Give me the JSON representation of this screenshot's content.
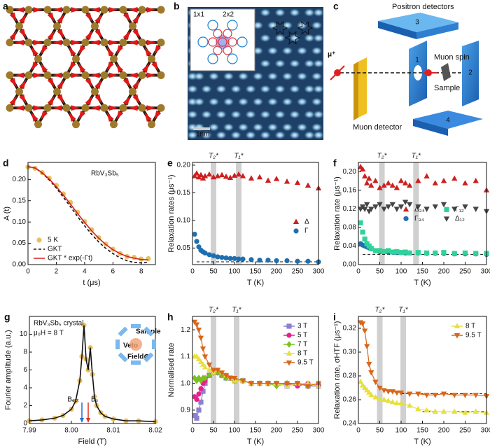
{
  "diagrams": {
    "a": {
      "label": "a"
    },
    "b": {
      "label": "b",
      "inset": [
        "1x1",
        "2x2"
      ],
      "scale": "1nm"
    },
    "c": {
      "label": "c",
      "positron": "Positron detectors",
      "muon": "μ⁺",
      "spin": "Muon spin",
      "sample": "Sample",
      "detector": "Muon detector",
      "numbers": [
        "1",
        "2",
        "3",
        "4"
      ]
    }
  },
  "chart_data": [
    {
      "type": "line",
      "label": "d",
      "xlabel": "t (μs)",
      "ylabel": "A (t)",
      "annotations": [
        "RbV₃Sb₅"
      ],
      "xlim": [
        0,
        9
      ],
      "xticks": [
        0,
        2,
        4,
        6,
        8
      ],
      "ylim": [
        0,
        0.24
      ],
      "yticks": [
        {
          "value": 0,
          "label": "0.00"
        },
        0.05,
        {
          "value": 0.1,
          "label": "0.10"
        },
        0.15,
        {
          "value": 0.2,
          "label": "0.20"
        }
      ],
      "legend": "lower left",
      "x": [
        0,
        0.5,
        1,
        1.5,
        2,
        2.5,
        3,
        3.5,
        4,
        4.5,
        5,
        5.5,
        6,
        6.5,
        7,
        7.5,
        8,
        8.5
      ],
      "series": [
        {
          "name": "5 K",
          "color": "#e8c060",
          "style": "markers",
          "marker": "circle",
          "values": [
            0.229,
            0.226,
            0.216,
            0.203,
            0.186,
            0.166,
            0.146,
            0.123,
            0.101,
            0.082,
            0.063,
            0.048,
            0.036,
            0.026,
            0.019,
            0.017,
            0.013,
            0.014
          ]
        },
        {
          "name": "GKT",
          "color": "#111111",
          "style": "dashed",
          "values": [
            0.23,
            0.227,
            0.215,
            0.199,
            0.18,
            0.158,
            0.136,
            0.113,
            0.091,
            0.071,
            0.053,
            0.038,
            0.026,
            0.016,
            0.009,
            0.005,
            0.004,
            0.005
          ]
        },
        {
          "name": "GKT * exp(-Γt)",
          "color": "#d42020",
          "style": "line",
          "values": [
            0.23,
            0.227,
            0.216,
            0.201,
            0.183,
            0.163,
            0.142,
            0.12,
            0.099,
            0.079,
            0.062,
            0.047,
            0.035,
            0.026,
            0.019,
            0.015,
            0.012,
            0.011
          ]
        }
      ]
    },
    {
      "type": "scatter",
      "label": "e",
      "xlabel": "T (K)",
      "ylabel": "Relaxation rates (μs⁻¹)",
      "annotations": [],
      "xlim": [
        0,
        300
      ],
      "xticks": [
        0,
        50,
        100,
        150,
        200,
        250,
        300
      ],
      "ylim": [
        0.02,
        0.205
      ],
      "yticks": [
        0.05,
        {
          "value": 0.1,
          "label": "0.10"
        },
        0.15,
        {
          "value": 0.2,
          "label": "0.20"
        }
      ],
      "legend": "center right",
      "bands": [
        {
          "x": 50,
          "label": "T₂*"
        },
        {
          "x": 110,
          "label": "T₁*"
        }
      ],
      "hlines": [
        {
          "y": 0.025,
          "from": 10,
          "to": 300
        }
      ],
      "x": [
        5,
        10,
        15,
        20,
        25,
        30,
        40,
        50,
        60,
        70,
        80,
        90,
        100,
        110,
        120,
        140,
        160,
        180,
        200,
        225,
        250,
        275,
        300
      ],
      "series": [
        {
          "name": "Δ",
          "color": "#cc1f1f",
          "style": "markers",
          "marker": "triangle",
          "values": [
            0.18,
            0.185,
            0.178,
            0.182,
            0.176,
            0.18,
            0.183,
            0.178,
            0.18,
            0.182,
            0.179,
            0.177,
            0.181,
            0.183,
            0.18,
            0.176,
            0.178,
            0.172,
            0.175,
            0.17,
            0.168,
            0.163,
            0.158
          ]
        },
        {
          "name": "Γ",
          "color": "#1f6fb0",
          "style": "markers",
          "marker": "circle",
          "values": [
            0.075,
            0.062,
            0.052,
            0.046,
            0.043,
            0.041,
            0.038,
            0.036,
            0.034,
            0.033,
            0.032,
            0.031,
            0.031,
            0.03,
            0.03,
            0.029,
            0.028,
            0.028,
            0.027,
            0.027,
            0.026,
            0.026,
            0.025
          ]
        }
      ]
    },
    {
      "type": "scatter",
      "label": "f",
      "xlabel": "T (K)",
      "ylabel": "Relaxation rate (μs⁻¹)",
      "annotations": [],
      "xlim": [
        0,
        300
      ],
      "xticks": [
        0,
        50,
        100,
        150,
        200,
        250,
        300
      ],
      "ylim": [
        0,
        0.22
      ],
      "yticks": [
        {
          "value": 0,
          "label": "0.00"
        },
        0.04,
        0.08,
        0.12,
        0.16,
        {
          "value": 0.2,
          "label": "0.20"
        }
      ],
      "legend": "center",
      "legend_columns": 2,
      "bands": [
        {
          "x": 55,
          "label": "T₂*"
        },
        {
          "x": 135,
          "label": "T₁*"
        }
      ],
      "hlines": [
        {
          "y": 0.022,
          "from": 10,
          "to": 300
        }
      ],
      "x": [
        5,
        10,
        15,
        20,
        25,
        30,
        40,
        50,
        60,
        70,
        80,
        90,
        100,
        110,
        120,
        140,
        160,
        180,
        200,
        225,
        250,
        275,
        300
      ],
      "series": [
        {
          "name": "Δ₃₄",
          "color": "#cc1f1f",
          "style": "markers",
          "marker": "triangle",
          "values": [
            0.21,
            0.205,
            0.19,
            0.175,
            0.185,
            0.17,
            0.18,
            0.165,
            0.17,
            0.175,
            0.17,
            0.165,
            0.18,
            0.175,
            0.17,
            0.18,
            0.19,
            0.175,
            0.18,
            0.185,
            0.175,
            0.18,
            0.16
          ]
        },
        {
          "name": "Γ₃₄",
          "color": "#1f6fb0",
          "style": "markers",
          "marker": "circle",
          "values": [
            0.045,
            0.042,
            0.04,
            0.038,
            0.036,
            0.034,
            0.03,
            0.028,
            0.028,
            0.027,
            0.027,
            0.026,
            0.026,
            0.025,
            0.025,
            0.025,
            0.024,
            0.024,
            0.024,
            0.023,
            0.023,
            0.023,
            0.022
          ]
        },
        {
          "name": "Γ₁₂",
          "color": "#2fd39a",
          "style": "markers",
          "marker": "square",
          "values": [
            0.09,
            0.07,
            0.055,
            0.045,
            0.04,
            0.035,
            0.03,
            0.03,
            0.028,
            0.03,
            0.027,
            0.028,
            0.026,
            0.027,
            0.025,
            0.026,
            0.025,
            0.025,
            0.026,
            0.024,
            0.025,
            0.024,
            0.024
          ]
        },
        {
          "name": "Δ₁₂",
          "color": "#454545",
          "style": "markers",
          "marker": "tri-down",
          "values": [
            0.12,
            0.125,
            0.12,
            0.13,
            0.115,
            0.12,
            0.125,
            0.13,
            0.12,
            0.125,
            0.13,
            0.12,
            0.125,
            0.135,
            0.13,
            0.125,
            0.12,
            0.125,
            0.13,
            0.12,
            0.125,
            0.12,
            0.115
          ]
        }
      ]
    },
    {
      "type": "line",
      "label": "g",
      "xlabel": "Field (T)",
      "ylabel": "Fourier amplitude (a.u.)",
      "annotations": [
        "RbV₃Sb₅ crystal",
        "μ₀H = 8 T",
        "Sample",
        "Veto",
        "Field⊗"
      ],
      "xlim": [
        7.99,
        8.02
      ],
      "xticks": [
        7.99,
        {
          "value": 8,
          "label": "8.00"
        },
        8.01,
        8.02
      ],
      "ylim": [
        0,
        12
      ],
      "yticks": [
        0,
        2,
        4,
        6,
        8,
        10
      ],
      "arrows": [
        {
          "label": "Bₑₓₜ",
          "x": 8.0025,
          "color": "#1f6fd0"
        },
        {
          "label": "Bₛ",
          "x": 8.004,
          "color": "#e0301e"
        }
      ],
      "x": [
        7.99,
        7.993,
        7.996,
        7.998,
        8.0,
        8.001,
        8.002,
        8.0025,
        8.003,
        8.0035,
        8.004,
        8.0045,
        8.005,
        8.0055,
        8.006,
        8.007,
        8.008,
        8.01,
        8.013,
        8.016,
        8.02
      ],
      "series": [
        {
          "color": "#e8c060",
          "style": "markers",
          "marker": "circle",
          "values": [
            0.3,
            0.4,
            0.6,
            0.9,
            1.6,
            2.5,
            4.8,
            7.5,
            11.0,
            7.2,
            6.0,
            8.5,
            5.5,
            3.0,
            2.0,
            1.2,
            0.8,
            0.5,
            0.3,
            0.3,
            0.2
          ]
        },
        {
          "color": "#111111",
          "style": "line",
          "values": [
            0.3,
            0.4,
            0.6,
            0.9,
            1.6,
            2.5,
            4.8,
            7.5,
            11.0,
            7.2,
            6.0,
            8.5,
            5.5,
            3.0,
            2.0,
            1.2,
            0.8,
            0.5,
            0.3,
            0.3,
            0.2
          ]
        }
      ]
    },
    {
      "type": "line",
      "label": "h",
      "xlabel": "T (K)",
      "ylabel": "Normalised rate",
      "annotations": [],
      "xlim": [
        0,
        300
      ],
      "xticks": [
        0,
        50,
        100,
        150,
        200,
        250,
        300
      ],
      "ylim": [
        0.85,
        1.25
      ],
      "yticks": [
        0.9,
        {
          "value": 1,
          "label": "1.0"
        },
        1.1,
        1.2
      ],
      "legend": "upper right",
      "bands": [
        {
          "x": 50,
          "label": "T₂*"
        },
        {
          "x": 105,
          "label": "T₁*"
        }
      ],
      "x": [
        5,
        10,
        15,
        20,
        25,
        30,
        40,
        50,
        60,
        70,
        80,
        90,
        100,
        120,
        140,
        160,
        180,
        200,
        225,
        250,
        275,
        300
      ],
      "series": [
        {
          "name": "3 T",
          "color": "#8a80d0",
          "style": "line+markers",
          "marker": "square",
          "values": [
            0.88,
            0.87,
            0.9,
            0.93,
            0.97,
            1.0,
            1.03,
            1.04,
            1.04,
            1.03,
            1.02,
            1.02,
            1.01,
            1.01,
            1.0,
            1.0,
            1.0,
            1.0,
            0.99,
            1.0,
            0.99,
            0.99
          ]
        },
        {
          "name": "5 T",
          "color": "#e8208a",
          "style": "line+markers",
          "marker": "circle",
          "values": [
            0.95,
            0.94,
            0.96,
            0.98,
            1.0,
            1.01,
            1.03,
            1.04,
            1.04,
            1.03,
            1.03,
            1.02,
            1.01,
            1.01,
            1.0,
            1.0,
            1.0,
            1.0,
            1.0,
            0.99,
            1.0,
            0.99
          ]
        },
        {
          "name": "7 T",
          "color": "#7cc020",
          "style": "line+markers",
          "marker": "diamond",
          "values": [
            1.02,
            1.01,
            1.02,
            1.01,
            1.02,
            1.02,
            1.03,
            1.04,
            1.04,
            1.03,
            1.02,
            1.02,
            1.01,
            1.01,
            1.0,
            1.0,
            1.0,
            0.99,
            1.0,
            1.0,
            0.99,
            1.0
          ]
        },
        {
          "name": "8 T",
          "color": "#e6e040",
          "style": "line+markers",
          "marker": "triangle",
          "values": [
            1.1,
            1.1,
            1.09,
            1.08,
            1.07,
            1.06,
            1.05,
            1.04,
            1.05,
            1.04,
            1.03,
            1.02,
            1.01,
            1.01,
            1.0,
            1.0,
            1.0,
            1.0,
            0.99,
            1.0,
            1.0,
            0.99
          ]
        },
        {
          "name": "9.5 T",
          "color": "#d8661a",
          "style": "line+markers",
          "marker": "tri-down",
          "values": [
            1.23,
            1.22,
            1.2,
            1.17,
            1.13,
            1.1,
            1.07,
            1.05,
            1.05,
            1.04,
            1.03,
            1.02,
            1.02,
            1.01,
            1.0,
            1.0,
            1.0,
            1.0,
            1.0,
            1.0,
            0.99,
            1.0
          ]
        }
      ]
    },
    {
      "type": "line",
      "label": "i",
      "xlabel": "T (K)",
      "ylabel": "Relaxation rate, σHTF (μs⁻¹)",
      "annotations": [],
      "xlim": [
        0,
        300
      ],
      "xticks": [
        0,
        50,
        100,
        150,
        200,
        250,
        300
      ],
      "ylim": [
        0.24,
        0.33
      ],
      "yticks": [
        0.24,
        0.26,
        0.28,
        {
          "value": 0.3,
          "label": "0.30"
        },
        0.32
      ],
      "legend": "upper right",
      "bands": [
        {
          "x": 50,
          "label": "T₂*"
        },
        {
          "x": 105,
          "label": "T₁*"
        }
      ],
      "hlines": [
        {
          "y": 0.265,
          "from": 100,
          "to": 300
        },
        {
          "y": 0.25,
          "from": 150,
          "to": 300
        }
      ],
      "x": [
        5,
        10,
        15,
        20,
        25,
        30,
        40,
        50,
        60,
        70,
        80,
        90,
        100,
        120,
        140,
        160,
        180,
        200,
        225,
        250,
        275,
        300
      ],
      "series": [
        {
          "name": "8 T",
          "color": "#e6e040",
          "style": "line+markers",
          "marker": "triangle",
          "values": [
            0.275,
            0.272,
            0.27,
            0.268,
            0.266,
            0.264,
            0.262,
            0.26,
            0.26,
            0.259,
            0.258,
            0.257,
            0.257,
            0.255,
            0.252,
            0.251,
            0.25,
            0.25,
            0.25,
            0.249,
            0.25,
            0.249
          ]
        },
        {
          "name": "9.5 T",
          "color": "#d8661a",
          "style": "line+markers",
          "marker": "tri-down",
          "values": [
            0.325,
            0.324,
            0.318,
            0.305,
            0.29,
            0.283,
            0.275,
            0.27,
            0.268,
            0.267,
            0.267,
            0.266,
            0.266,
            0.265,
            0.265,
            0.264,
            0.264,
            0.265,
            0.264,
            0.264,
            0.264,
            0.263
          ]
        }
      ]
    }
  ]
}
